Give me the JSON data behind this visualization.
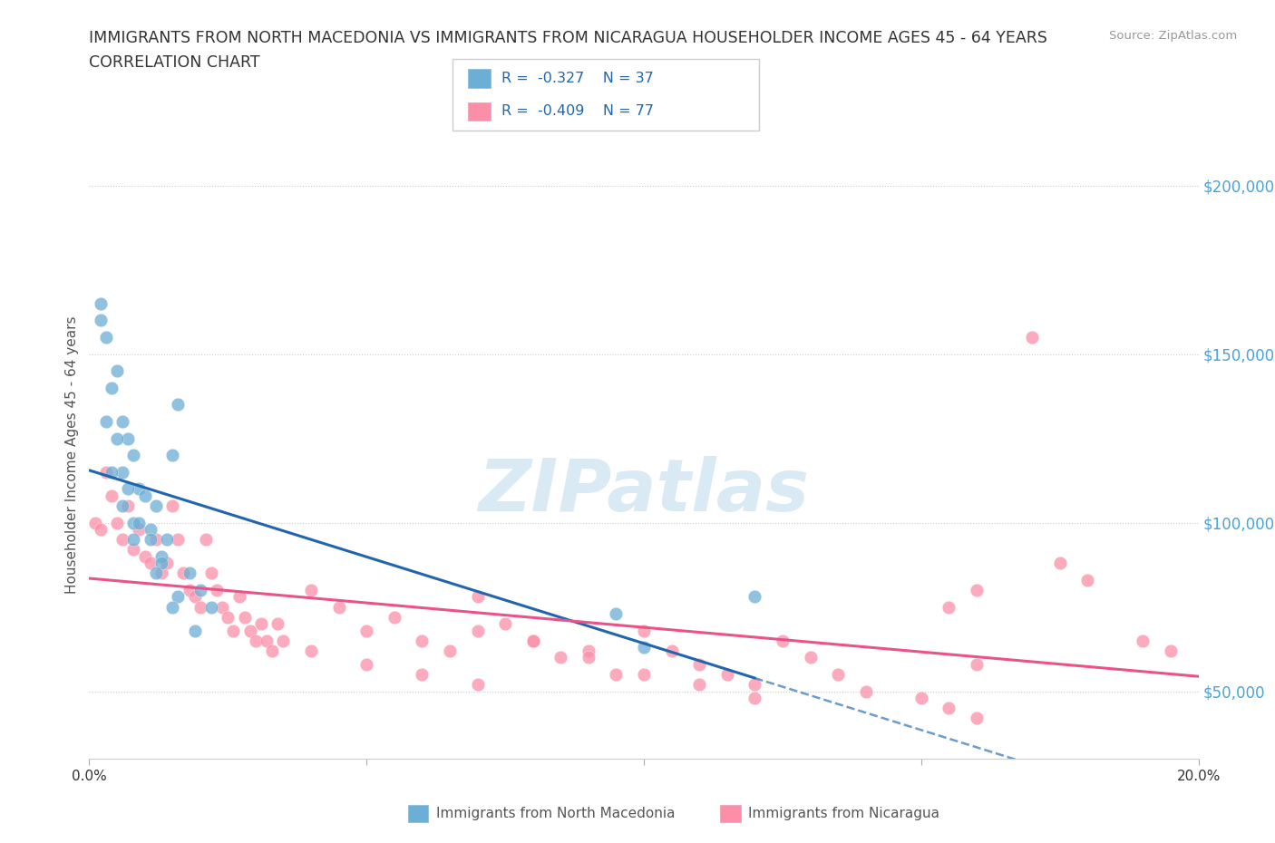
{
  "title_line1": "IMMIGRANTS FROM NORTH MACEDONIA VS IMMIGRANTS FROM NICARAGUA HOUSEHOLDER INCOME AGES 45 - 64 YEARS",
  "title_line2": "CORRELATION CHART",
  "source": "Source: ZipAtlas.com",
  "ylabel": "Householder Income Ages 45 - 64 years",
  "xlim": [
    0.0,
    0.2
  ],
  "ylim": [
    30000,
    210000
  ],
  "yticks": [
    50000,
    100000,
    150000,
    200000
  ],
  "ytick_labels": [
    "$50,000",
    "$100,000",
    "$150,000",
    "$200,000"
  ],
  "xticks": [
    0.0,
    0.05,
    0.1,
    0.15,
    0.2
  ],
  "xtick_labels": [
    "0.0%",
    "",
    "",
    "",
    "20.0%"
  ],
  "legend_text1": "R =  -0.327    N = 37",
  "legend_text2": "R =  -0.409    N = 77",
  "color_mac": "#6baed6",
  "color_nic": "#fc8fa8",
  "color_mac_line": "#2166ac",
  "color_nic_line": "#e8538a",
  "watermark": "ZIPatlas",
  "watermark_color": "#daeaf5",
  "label_mac": "Immigrants from North Macedonia",
  "label_nic": "Immigrants from Nicaragua",
  "mac_scatter_x": [
    0.002,
    0.004,
    0.006,
    0.003,
    0.005,
    0.007,
    0.008,
    0.006,
    0.009,
    0.01,
    0.012,
    0.008,
    0.011,
    0.014,
    0.016,
    0.013,
    0.015,
    0.018,
    0.02,
    0.022,
    0.003,
    0.005,
    0.007,
    0.009,
    0.011,
    0.006,
    0.004,
    0.013,
    0.016,
    0.019,
    0.002,
    0.008,
    0.012,
    0.015,
    0.095,
    0.1,
    0.12
  ],
  "mac_scatter_y": [
    160000,
    140000,
    130000,
    155000,
    145000,
    125000,
    120000,
    115000,
    110000,
    108000,
    105000,
    100000,
    98000,
    95000,
    135000,
    90000,
    120000,
    85000,
    80000,
    75000,
    130000,
    125000,
    110000,
    100000,
    95000,
    105000,
    115000,
    88000,
    78000,
    68000,
    165000,
    95000,
    85000,
    75000,
    73000,
    63000,
    78000
  ],
  "nic_scatter_x": [
    0.001,
    0.002,
    0.003,
    0.004,
    0.005,
    0.006,
    0.007,
    0.008,
    0.009,
    0.01,
    0.011,
    0.012,
    0.013,
    0.014,
    0.015,
    0.016,
    0.017,
    0.018,
    0.019,
    0.02,
    0.021,
    0.022,
    0.023,
    0.024,
    0.025,
    0.026,
    0.027,
    0.028,
    0.029,
    0.03,
    0.031,
    0.032,
    0.033,
    0.034,
    0.035,
    0.04,
    0.045,
    0.05,
    0.055,
    0.06,
    0.065,
    0.07,
    0.075,
    0.08,
    0.085,
    0.09,
    0.095,
    0.1,
    0.105,
    0.11,
    0.115,
    0.12,
    0.125,
    0.13,
    0.135,
    0.14,
    0.15,
    0.155,
    0.16,
    0.17,
    0.175,
    0.18,
    0.155,
    0.19,
    0.195,
    0.16,
    0.07,
    0.08,
    0.09,
    0.1,
    0.11,
    0.12,
    0.04,
    0.05,
    0.06,
    0.07,
    0.16
  ],
  "nic_scatter_y": [
    100000,
    98000,
    115000,
    108000,
    100000,
    95000,
    105000,
    92000,
    98000,
    90000,
    88000,
    95000,
    85000,
    88000,
    105000,
    95000,
    85000,
    80000,
    78000,
    75000,
    95000,
    85000,
    80000,
    75000,
    72000,
    68000,
    78000,
    72000,
    68000,
    65000,
    70000,
    65000,
    62000,
    70000,
    65000,
    80000,
    75000,
    68000,
    72000,
    65000,
    62000,
    78000,
    70000,
    65000,
    60000,
    62000,
    55000,
    68000,
    62000,
    58000,
    55000,
    52000,
    65000,
    60000,
    55000,
    50000,
    48000,
    45000,
    42000,
    155000,
    88000,
    83000,
    75000,
    65000,
    62000,
    58000,
    68000,
    65000,
    60000,
    55000,
    52000,
    48000,
    62000,
    58000,
    55000,
    52000,
    80000
  ]
}
